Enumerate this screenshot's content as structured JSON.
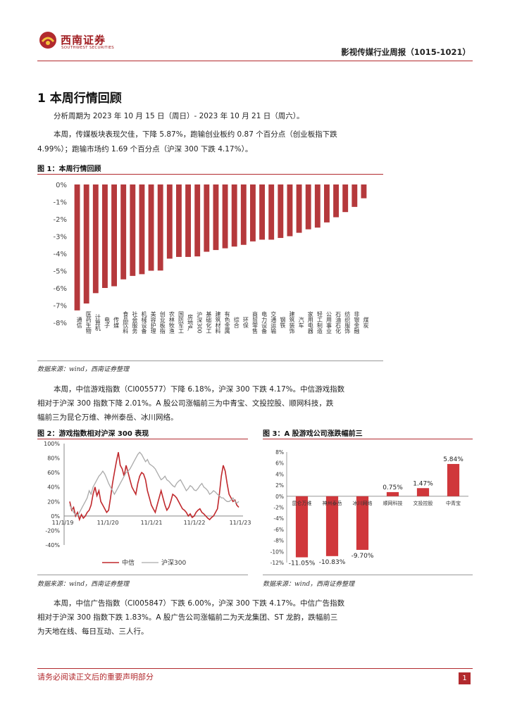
{
  "header": {
    "logo_cn": "西南证券",
    "logo_en": "SOUTHWEST SECURITIES",
    "report_title": "影视传媒行业周报（1015-1021）"
  },
  "section": {
    "title": "1 本周行情回顾",
    "para1": "分析周期为 2023 年 10 月 15 日（周日）- 2023 年 10 月 21 日（周六）。",
    "para2_line1": "本周，传媒板块表现欠佳，下降 5.87%，跑输创业板约 0.87 个百分点（创业板指下跌",
    "para2_line2": "4.99%）；跑输市场约 1.69 个百分点（沪深 300 下跌 4.17%）。"
  },
  "figure1": {
    "title": "图 1：本周行情回顾",
    "source": "数据来源：wind，西南证券整理"
  },
  "para3": {
    "line1": "本周，中信游戏指数（CI005577）下降 6.18%，沪深 300 下跌 4.17%。中信游戏指数",
    "line2": "相对于沪深 300 指数下降 2.01%。A 股公司涨幅前三为中青宝、文投控股、顺网科技，跌",
    "line3": "幅前三为昆仑万维、神州泰岳、冰川网络。"
  },
  "figure2": {
    "title": "图 2：游戏指数相对沪深 300 表现",
    "source": "数据来源：wind，西南证券整理"
  },
  "figure3": {
    "title": "图 3：A 股游戏公司涨跌幅前三",
    "source": "数据来源：wind，西南证券整理"
  },
  "para4": {
    "line1": "本周，中信广告指数（CI005847）下跌 6.00%，沪深 300 下跌 4.17%。中信广告指数",
    "line2": "相对于沪深 300 指数下跌 1.83%。A 股广告公司涨幅前二为天龙集团、ST 龙韵，跌幅前三",
    "line3": "为天地在线、每日互动、三人行。"
  },
  "footer": {
    "disclaimer": "请务必阅读正文后的重要声明部分",
    "page": "1"
  },
  "colors": {
    "brand_red": "#b22a2e",
    "bar_red": "#b5393c",
    "gray_line": "#aaaaaa"
  },
  "chart_data": [
    {
      "type": "bar",
      "title": "图 1：本周行情回顾",
      "ylim": [
        -8,
        0
      ],
      "yticks": [
        "0%",
        "-1%",
        "-2%",
        "-3%",
        "-4%",
        "-5%",
        "-6%",
        "-7%",
        "-8%"
      ],
      "categories": [
        "通信",
        "医药生物",
        "计算机",
        "电子",
        "传媒",
        "食品饮料",
        "社会服务",
        "机械设备",
        "美容护理",
        "创业板指",
        "农林牧渔",
        "国防军工",
        "房地产",
        "沪深300",
        "基础化工",
        "建筑材料",
        "有色金属",
        "综合",
        "环保",
        "商贸零售",
        "电力设备",
        "交通运输",
        "钢铁",
        "建筑装饰",
        "汽车",
        "家用电器",
        "轻工制造",
        "公用事业",
        "石油石化",
        "纺织服饰",
        "非银金融",
        "煤炭"
      ],
      "values": [
        -7.3,
        -6.9,
        -6.3,
        -6.0,
        -5.9,
        -5.5,
        -5.3,
        -5.2,
        -5.0,
        -4.99,
        -4.3,
        -4.2,
        -4.2,
        -4.17,
        -3.9,
        -3.8,
        -3.7,
        -3.6,
        -3.5,
        -3.3,
        -3.2,
        -3.2,
        -3.1,
        -3.0,
        -2.8,
        -2.6,
        -2.5,
        -2.2,
        -1.9,
        -1.6,
        -1.3,
        -0.8
      ]
    },
    {
      "type": "line",
      "title": "图 2：游戏指数相对沪深 300 表现",
      "yticks": [
        "100%",
        "80%",
        "60%",
        "40%",
        "20%",
        "0%",
        "-20%",
        "-40%"
      ],
      "ylim": [
        -40,
        100
      ],
      "xticks": [
        "11/1/19",
        "11/1/20",
        "11/1/21",
        "11/1/22",
        "11/1/23"
      ],
      "series": [
        {
          "name": "中信",
          "color": "#c0282c",
          "values": [
            20,
            8,
            12,
            0,
            5,
            -5,
            2,
            -3,
            0,
            5,
            8,
            15,
            30,
            40,
            28,
            35,
            20,
            15,
            10,
            5,
            8,
            25,
            45,
            60,
            75,
            88,
            70,
            65,
            55,
            70,
            60,
            50,
            40,
            35,
            30,
            45,
            55,
            60,
            58,
            50,
            35,
            25,
            15,
            10,
            5,
            15,
            25,
            35,
            25,
            15,
            8,
            12,
            20,
            30,
            28,
            25,
            20,
            15,
            10,
            8,
            5,
            0,
            3,
            -2,
            0,
            5,
            8,
            10,
            5,
            3,
            0,
            -3,
            -5,
            -2,
            0,
            5,
            10,
            30,
            55,
            70,
            62,
            45,
            30,
            25,
            20,
            22,
            15,
            12
          ]
        },
        {
          "name": "沪深300",
          "color": "#aaaaaa",
          "values": [
            15,
            10,
            5,
            2,
            0,
            5,
            10,
            15,
            20,
            25,
            35,
            30,
            40,
            45,
            50,
            55,
            58,
            62,
            58,
            52,
            45,
            40,
            35,
            30,
            35,
            40,
            45,
            50,
            55,
            60,
            62,
            65,
            70,
            75,
            80,
            85,
            88,
            85,
            80,
            75,
            78,
            72,
            70,
            68,
            65,
            60,
            55,
            50,
            52,
            55,
            50,
            48,
            45,
            42,
            40,
            45,
            48,
            50,
            45,
            40,
            35,
            38,
            42,
            40,
            36,
            35,
            38,
            42,
            45,
            40,
            38,
            35,
            30,
            32,
            35,
            33,
            30,
            28,
            25,
            25,
            22,
            20,
            20,
            22,
            25,
            20,
            18,
            20
          ]
        }
      ]
    },
    {
      "type": "bar",
      "title": "图 3：A 股游戏公司涨跌幅前三",
      "ylim": [
        -12,
        8
      ],
      "yticks": [
        "8%",
        "6%",
        "4%",
        "2%",
        "0%",
        "-2%",
        "-4%",
        "-6%",
        "-8%",
        "-10%",
        "-12%"
      ],
      "categories": [
        "昆仑万维",
        "神州泰岳",
        "冰川网络",
        "顺网科技",
        "文投控股",
        "中青宝"
      ],
      "values": [
        -11.05,
        -10.83,
        -9.7,
        0.75,
        1.47,
        5.84
      ],
      "data_labels": [
        "-11.05%",
        "-10.83%",
        "-9.70%",
        "0.75%",
        "1.47%",
        "5.84%"
      ]
    }
  ]
}
